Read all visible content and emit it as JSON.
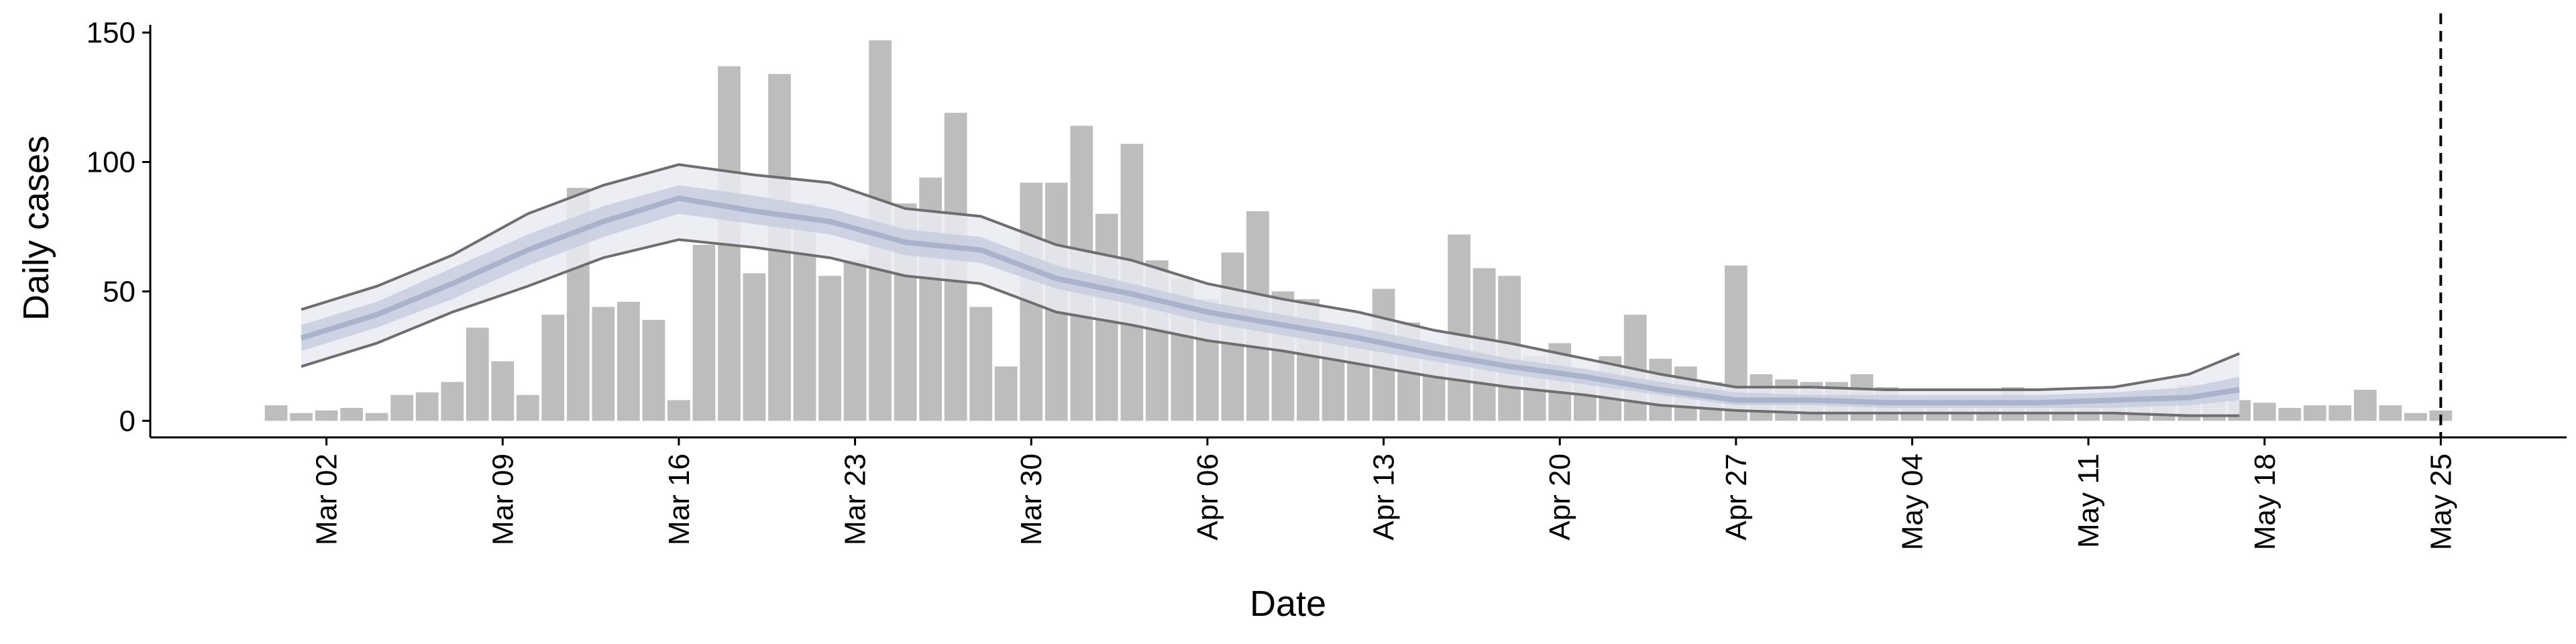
{
  "chart_data": {
    "type": "bar",
    "x_label": "Date",
    "y_label": "Daily cases",
    "x": [
      "Feb 29",
      "Mar 01",
      "Mar 02",
      "Mar 03",
      "Mar 04",
      "Mar 05",
      "Mar 06",
      "Mar 07",
      "Mar 08",
      "Mar 09",
      "Mar 10",
      "Mar 11",
      "Mar 12",
      "Mar 13",
      "Mar 14",
      "Mar 15",
      "Mar 16",
      "Mar 17",
      "Mar 18",
      "Mar 19",
      "Mar 20",
      "Mar 21",
      "Mar 22",
      "Mar 23",
      "Mar 24",
      "Mar 25",
      "Mar 26",
      "Mar 27",
      "Mar 28",
      "Mar 29",
      "Mar 30",
      "Mar 31",
      "Apr 01",
      "Apr 02",
      "Apr 03",
      "Apr 04",
      "Apr 05",
      "Apr 06",
      "Apr 07",
      "Apr 08",
      "Apr 09",
      "Apr 10",
      "Apr 11",
      "Apr 12",
      "Apr 13",
      "Apr 14",
      "Apr 15",
      "Apr 16",
      "Apr 17",
      "Apr 18",
      "Apr 19",
      "Apr 20",
      "Apr 21",
      "Apr 22",
      "Apr 23",
      "Apr 24",
      "Apr 25",
      "Apr 26",
      "Apr 27",
      "Apr 28",
      "Apr 29",
      "Apr 30",
      "May 01",
      "May 02",
      "May 03",
      "May 04",
      "May 05",
      "May 06",
      "May 07",
      "May 08",
      "May 09",
      "May 10",
      "May 11",
      "May 12",
      "May 13",
      "May 14",
      "May 15",
      "May 16",
      "May 17",
      "May 18",
      "May 19",
      "May 20",
      "May 21",
      "May 22",
      "May 23",
      "May 24",
      "May 25"
    ],
    "values": [
      6,
      3,
      4,
      5,
      3,
      10,
      11,
      15,
      36,
      23,
      10,
      41,
      90,
      44,
      46,
      39,
      8,
      68,
      137,
      57,
      134,
      84,
      56,
      62,
      147,
      84,
      94,
      119,
      44,
      21,
      92,
      92,
      114,
      80,
      107,
      62,
      55,
      47,
      65,
      81,
      50,
      47,
      33,
      30,
      51,
      38,
      29,
      72,
      59,
      56,
      25,
      30,
      17,
      25,
      41,
      24,
      21,
      15,
      60,
      18,
      16,
      15,
      15,
      18,
      13,
      5,
      9,
      9,
      9,
      13,
      9,
      8,
      6,
      8,
      10,
      8,
      14,
      8,
      8,
      7,
      5,
      6,
      6,
      12,
      6,
      3,
      4
    ],
    "color": "#bdbdbd",
    "band": {
      "x": [
        "Mar 01",
        "Mar 04",
        "Mar 07",
        "Mar 10",
        "Mar 13",
        "Mar 16",
        "Mar 19",
        "Mar 22",
        "Mar 25",
        "Mar 28",
        "Mar 31",
        "Apr 03",
        "Apr 06",
        "Apr 09",
        "Apr 12",
        "Apr 15",
        "Apr 18",
        "Apr 21",
        "Apr 24",
        "Apr 27",
        "Apr 30",
        "May 03",
        "May 06",
        "May 09",
        "May 12",
        "May 15",
        "May 17"
      ],
      "upper90": [
        43,
        52,
        64,
        80,
        91,
        99,
        95,
        92,
        82,
        79,
        68,
        62,
        53,
        47,
        42,
        35,
        30,
        24,
        18,
        13,
        13,
        12,
        12,
        12,
        13,
        18,
        26
      ],
      "lower90": [
        21,
        30,
        42,
        52,
        63,
        70,
        67,
        63,
        56,
        53,
        42,
        37,
        31,
        27,
        22,
        17,
        13,
        10,
        6,
        4,
        3,
        3,
        3,
        3,
        3,
        2,
        2
      ],
      "upper50": [
        37,
        46,
        59,
        72,
        83,
        91,
        87,
        82,
        74,
        71,
        60,
        53,
        46,
        41,
        36,
        30,
        24,
        20,
        15,
        11,
        10,
        10,
        10,
        10,
        11,
        13,
        17
      ],
      "lower50": [
        27,
        36,
        47,
        60,
        71,
        80,
        76,
        72,
        64,
        61,
        51,
        45,
        38,
        33,
        28,
        23,
        18,
        14,
        10,
        6,
        6,
        5,
        5,
        5,
        5,
        6,
        8
      ],
      "median": [
        32,
        41,
        53,
        66,
        77,
        86,
        81,
        77,
        69,
        66,
        55,
        49,
        42,
        37,
        32,
        26,
        21,
        17,
        12,
        8,
        8,
        7,
        7,
        7,
        8,
        9,
        12
      ],
      "outer_color": "#e9ebf2",
      "inner_color": "#c8cede",
      "median_color": "#aab3cc",
      "line_color": "#6e6e6e"
    },
    "vline": "May 25",
    "xlim": [
      "Feb 24",
      "May 30"
    ],
    "xticks": [
      "Mar 02",
      "Mar 09",
      "Mar 16",
      "Mar 23",
      "Mar 30",
      "Apr 06",
      "Apr 13",
      "Apr 20",
      "Apr 27",
      "May 04",
      "May 11",
      "May 18",
      "May 25"
    ],
    "ylim": [
      -6.4,
      153
    ],
    "yticks": [
      0,
      50,
      100,
      150
    ]
  }
}
